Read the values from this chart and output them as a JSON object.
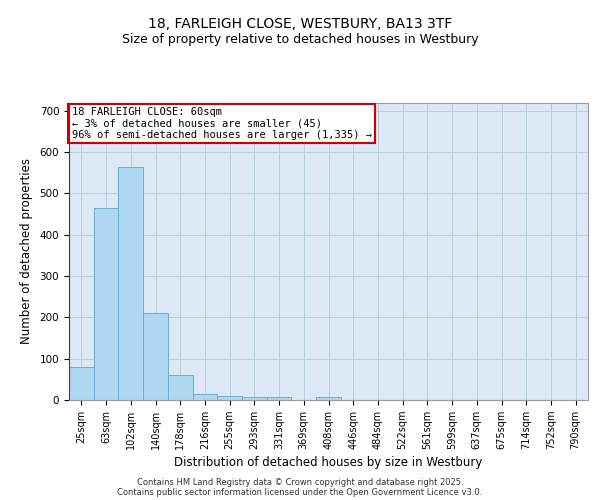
{
  "title_line1": "18, FARLEIGH CLOSE, WESTBURY, BA13 3TF",
  "title_line2": "Size of property relative to detached houses in Westbury",
  "xlabel": "Distribution of detached houses by size in Westbury",
  "ylabel": "Number of detached properties",
  "categories": [
    "25sqm",
    "63sqm",
    "102sqm",
    "140sqm",
    "178sqm",
    "216sqm",
    "255sqm",
    "293sqm",
    "331sqm",
    "369sqm",
    "408sqm",
    "446sqm",
    "484sqm",
    "522sqm",
    "561sqm",
    "599sqm",
    "637sqm",
    "675sqm",
    "714sqm",
    "752sqm",
    "790sqm"
  ],
  "values": [
    80,
    465,
    565,
    210,
    60,
    15,
    10,
    7,
    8,
    0,
    8,
    0,
    0,
    0,
    0,
    0,
    0,
    0,
    0,
    0,
    0
  ],
  "bar_color": "#add8f0",
  "bar_edge_color": "#6baed6",
  "background_color": "#dce8f5",
  "grid_color": "#b8cfe0",
  "annotation_text": "18 FARLEIGH CLOSE: 60sqm\n← 3% of detached houses are smaller (45)\n96% of semi-detached houses are larger (1,335) →",
  "annotation_box_facecolor": "white",
  "annotation_box_edgecolor": "#cc0000",
  "vline_color": "#cc0000",
  "ylim": [
    0,
    720
  ],
  "yticks": [
    0,
    100,
    200,
    300,
    400,
    500,
    600,
    700
  ],
  "footer_text": "Contains HM Land Registry data © Crown copyright and database right 2025.\nContains public sector information licensed under the Open Government Licence v3.0.",
  "title_fontsize": 10,
  "subtitle_fontsize": 9,
  "axis_label_fontsize": 8.5,
  "tick_fontsize": 7,
  "annotation_fontsize": 7.5,
  "footer_fontsize": 6
}
